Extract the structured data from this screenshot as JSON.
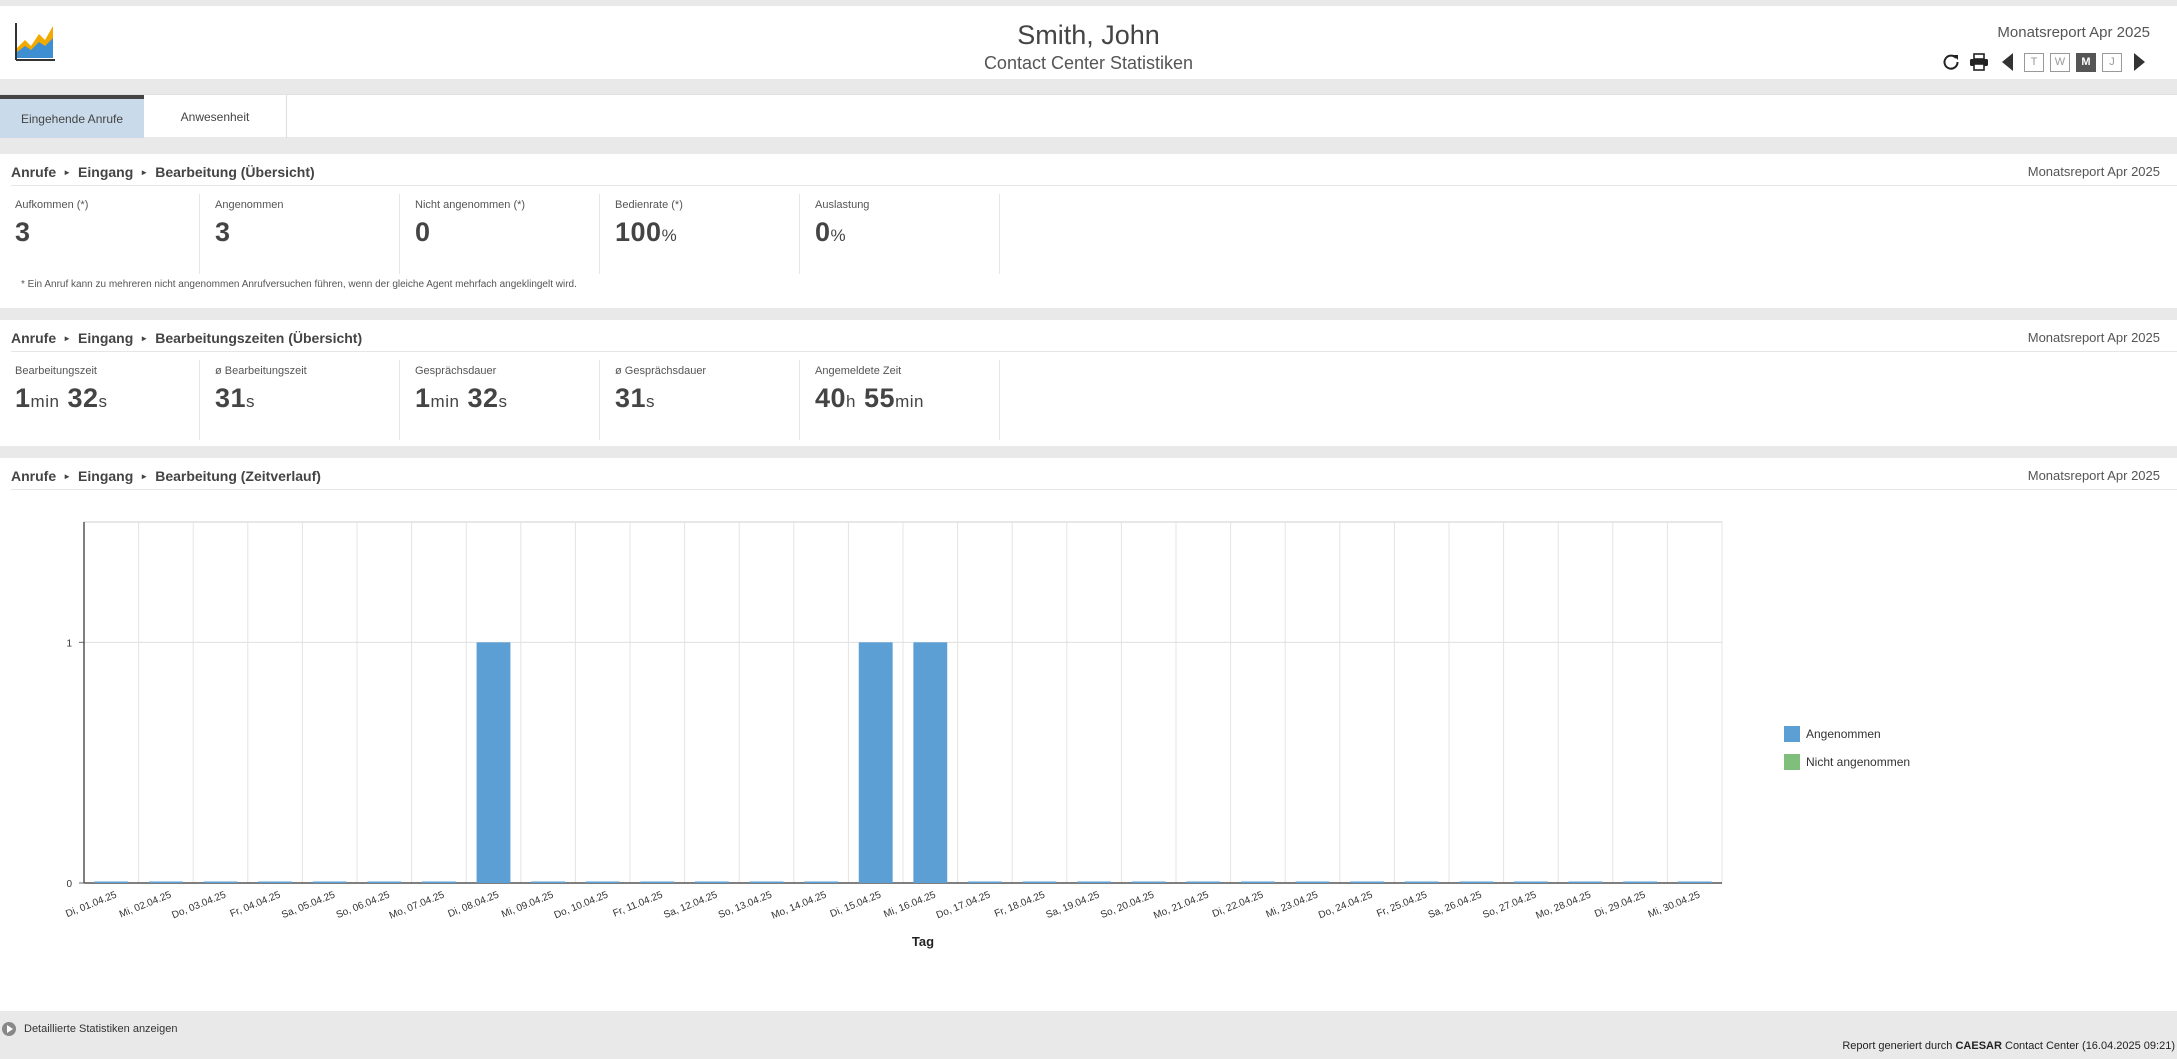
{
  "header": {
    "title": "Smith, John",
    "subtitle": "Contact Center Statistiken",
    "period": "Monatsreport Apr 2025",
    "toolbar": {
      "refresh_icon": "refresh-icon",
      "print_icon": "print-icon",
      "prev_icon": "triangle-left-icon",
      "next_icon": "triangle-right-icon",
      "ranges": [
        "T",
        "W",
        "M",
        "J"
      ],
      "active_range": "M"
    }
  },
  "tabs": [
    {
      "label": "Eingehende Anrufe",
      "active": true
    },
    {
      "label": "Anwesenheit",
      "active": false
    }
  ],
  "panel1": {
    "crumbs": [
      "Anrufe",
      "Eingang",
      "Bearbeitung (Übersicht)"
    ],
    "period": "Monatsreport Apr 2025",
    "kpis": [
      {
        "label": "Aufkommen (*)",
        "value": "3",
        "unit": ""
      },
      {
        "label": "Angenommen",
        "value": "3",
        "unit": ""
      },
      {
        "label": "Nicht angenommen (*)",
        "value": "0",
        "unit": ""
      },
      {
        "label": "Bedienrate (*)",
        "value": "100",
        "unit": "%"
      },
      {
        "label": "Auslastung",
        "value": "0",
        "unit": "%"
      }
    ],
    "footnote": "* Ein Anruf kann zu mehreren nicht angenommen Anrufversuchen führen, wenn der gleiche Agent mehrfach angeklingelt wird."
  },
  "panel2": {
    "crumbs": [
      "Anrufe",
      "Eingang",
      "Bearbeitungszeiten (Übersicht)"
    ],
    "period": "Monatsreport Apr 2025",
    "kpis": [
      {
        "label": "Bearbeitungszeit",
        "parts": [
          [
            "1",
            "min"
          ],
          [
            "32",
            "s"
          ]
        ]
      },
      {
        "label": "ø Bearbeitungszeit",
        "parts": [
          [
            "31",
            "s"
          ]
        ]
      },
      {
        "label": "Gesprächsdauer",
        "parts": [
          [
            "1",
            "min"
          ],
          [
            "32",
            "s"
          ]
        ]
      },
      {
        "label": "ø Gesprächsdauer",
        "parts": [
          [
            "31",
            "s"
          ]
        ]
      },
      {
        "label": "Angemeldete Zeit",
        "parts": [
          [
            "40",
            "h"
          ],
          [
            "55",
            "min"
          ]
        ]
      }
    ]
  },
  "panel3": {
    "crumbs": [
      "Anrufe",
      "Eingang",
      "Bearbeitung (Zeitverlauf)"
    ],
    "period": "Monatsreport Apr 2025"
  },
  "chart_data": {
    "type": "bar",
    "xlabel": "Tag",
    "ylabel": "",
    "ylim": [
      0,
      1.5
    ],
    "yticks": [
      0,
      1
    ],
    "grid": true,
    "legend_position": "right",
    "categories": [
      "Di, 01.04.25",
      "Mi, 02.04.25",
      "Do, 03.04.25",
      "Fr, 04.04.25",
      "Sa, 05.04.25",
      "So, 06.04.25",
      "Mo, 07.04.25",
      "Di, 08.04.25",
      "Mi, 09.04.25",
      "Do, 10.04.25",
      "Fr, 11.04.25",
      "Sa, 12.04.25",
      "So, 13.04.25",
      "Mo, 14.04.25",
      "Di, 15.04.25",
      "Mi, 16.04.25",
      "Do, 17.04.25",
      "Fr, 18.04.25",
      "Sa, 19.04.25",
      "So, 20.04.25",
      "Mo, 21.04.25",
      "Di, 22.04.25",
      "Mi, 23.04.25",
      "Do, 24.04.25",
      "Fr, 25.04.25",
      "Sa, 26.04.25",
      "So, 27.04.25",
      "Mo, 28.04.25",
      "Di, 29.04.25",
      "Mi, 30.04.25"
    ],
    "series": [
      {
        "name": "Angenommen",
        "color": "#5b9fd4",
        "values": [
          0,
          0,
          0,
          0,
          0,
          0,
          0,
          1,
          0,
          0,
          0,
          0,
          0,
          0,
          1,
          1,
          0,
          0,
          0,
          0,
          0,
          0,
          0,
          0,
          0,
          0,
          0,
          0,
          0,
          0
        ]
      },
      {
        "name": "Nicht angenommen",
        "color": "#7fbf7b",
        "values": [
          0,
          0,
          0,
          0,
          0,
          0,
          0,
          0,
          0,
          0,
          0,
          0,
          0,
          0,
          0,
          0,
          0,
          0,
          0,
          0,
          0,
          0,
          0,
          0,
          0,
          0,
          0,
          0,
          0,
          0
        ]
      }
    ]
  },
  "footer": {
    "details_label": "Detaillierte Statistiken anzeigen",
    "generated_prefix": "Report generiert durch ",
    "generated_brand": "CAESAR",
    "generated_suffix": " Contact Center (16.04.2025 09:21)"
  }
}
